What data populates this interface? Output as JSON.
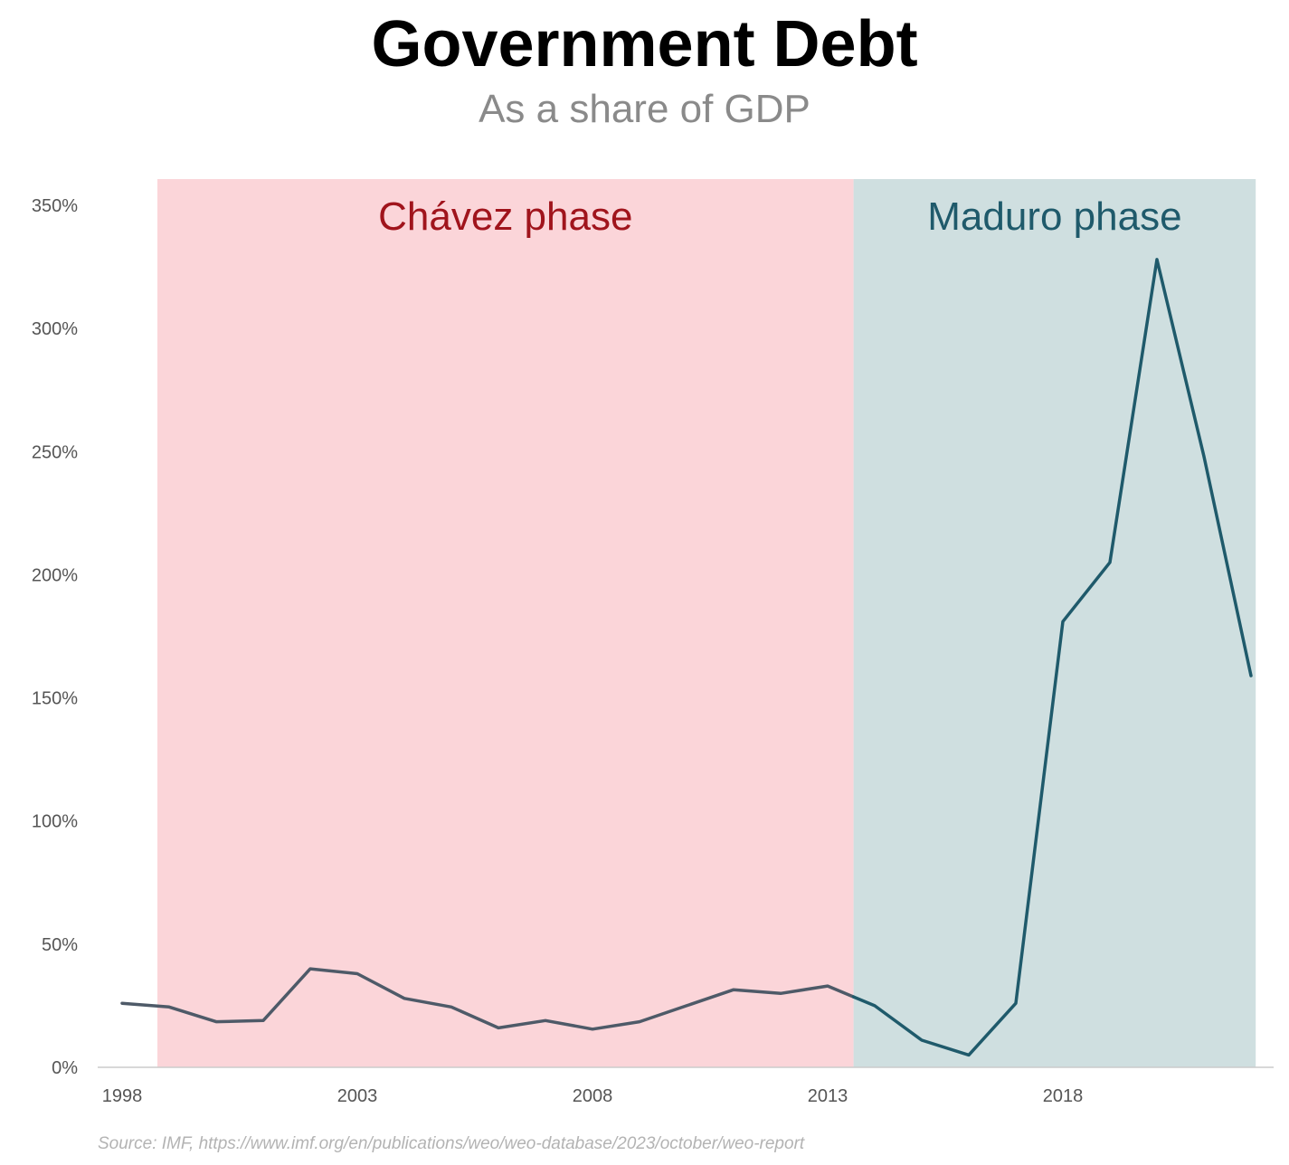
{
  "title": "Government Debt",
  "subtitle": "As a share of GDP",
  "source": "Source: IMF, https://www.imf.org/en/publications/weo/weo-database/2023/october/weo-report",
  "chart_data": {
    "type": "line",
    "title": "Government Debt",
    "subtitle": "As a share of GDP",
    "xlabel": "",
    "ylabel": "",
    "x": [
      1998,
      1999,
      2000,
      2001,
      2002,
      2003,
      2004,
      2005,
      2006,
      2007,
      2008,
      2009,
      2010,
      2011,
      2012,
      2013,
      2014,
      2015,
      2016,
      2017,
      2018,
      2019,
      2020,
      2021,
      2022
    ],
    "series": [
      {
        "values": [
          26,
          24.5,
          18.5,
          19,
          40,
          38,
          28,
          24.5,
          16,
          19,
          15.5,
          18.5,
          25,
          31.5,
          30,
          33,
          25,
          11,
          5,
          26,
          181,
          205,
          328,
          248,
          159
        ],
        "color": "#1f5a6b"
      }
    ],
    "xlim": [
      1998,
      2022.5
    ],
    "ylim": [
      0,
      350
    ],
    "x_ticks": [
      1998,
      2003,
      2008,
      2013,
      2018
    ],
    "y_ticks": [
      0,
      50,
      100,
      150,
      200,
      250,
      300,
      350
    ],
    "y_tick_labels": [
      "0%",
      "50%",
      "100%",
      "150%",
      "200%",
      "250%",
      "300%",
      "350%"
    ],
    "grid": false,
    "bands": [
      {
        "label": "Chávez phase",
        "from": 1998.75,
        "to": 2013.55,
        "fill": "#fbd5d9",
        "text_color": "#a0141c"
      },
      {
        "label": "Maduro phase",
        "from": 2013.55,
        "to": 2022.1,
        "fill": "#cfdfe0",
        "text_color": "#1f5a6b"
      }
    ],
    "colors": {
      "line": "#1f5a6b",
      "line_in_chavez_band": "#4e5a68",
      "axis": "#cccccc",
      "tick_text": "#555555"
    }
  }
}
